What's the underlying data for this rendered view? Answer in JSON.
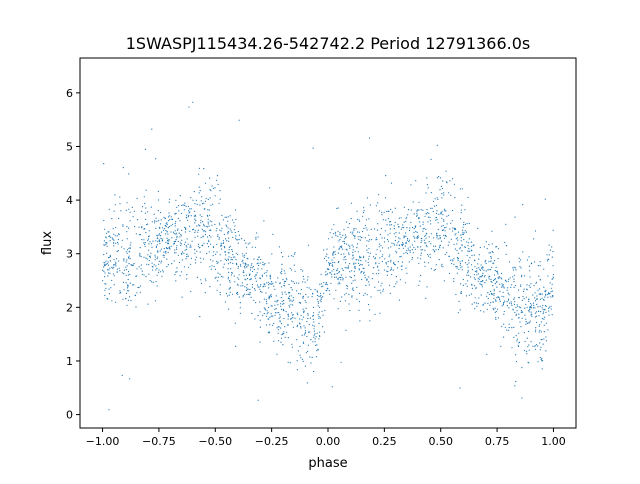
{
  "chart_data": {
    "type": "scatter",
    "title": "1SWASPJ115434.26-542742.2 Period 12791366.0s",
    "xlabel": "phase",
    "ylabel": "flux",
    "xlim": [
      -1.1,
      1.1
    ],
    "ylim": [
      -0.25,
      6.65
    ],
    "xticks": [
      -1.0,
      -0.75,
      -0.5,
      -0.25,
      0.0,
      0.25,
      0.5,
      0.75,
      1.0
    ],
    "xtick_labels": [
      "−1.00",
      "−0.75",
      "−0.50",
      "−0.25",
      "0.00",
      "0.25",
      "0.50",
      "0.75",
      "1.00"
    ],
    "yticks": [
      0,
      1,
      2,
      3,
      4,
      5,
      6
    ],
    "ytick_labels": [
      "0",
      "1",
      "2",
      "3",
      "4",
      "5",
      "6"
    ],
    "grid": false,
    "marker_color": "#1f77b4",
    "series": [
      {
        "x": [
          -1.0,
          -0.95,
          -0.9,
          -0.85,
          -0.8,
          -0.75,
          -0.7,
          -0.65,
          -0.6,
          -0.55,
          -0.5,
          -0.45,
          -0.4,
          -0.35,
          -0.3,
          -0.25,
          -0.2,
          -0.15,
          -0.1,
          -0.05,
          0.0,
          0.05,
          0.1,
          0.15,
          0.2,
          0.25,
          0.3,
          0.35,
          0.4,
          0.45,
          0.5,
          0.55,
          0.6,
          0.65,
          0.7,
          0.75,
          0.8,
          0.85,
          0.9,
          0.95,
          1.0
        ],
        "y": [
          2.9,
          2.9,
          3.0,
          2.9,
          3.2,
          3.1,
          3.3,
          3.3,
          3.4,
          3.5,
          3.4,
          3.0,
          2.7,
          2.6,
          2.4,
          2.2,
          2.1,
          2.1,
          1.8,
          1.6,
          2.7,
          2.9,
          2.9,
          3.0,
          2.9,
          3.2,
          3.1,
          3.3,
          3.3,
          3.4,
          3.5,
          3.4,
          3.0,
          2.7,
          2.6,
          2.4,
          2.2,
          2.1,
          2.1,
          1.8,
          2.6
        ]
      }
    ]
  }
}
